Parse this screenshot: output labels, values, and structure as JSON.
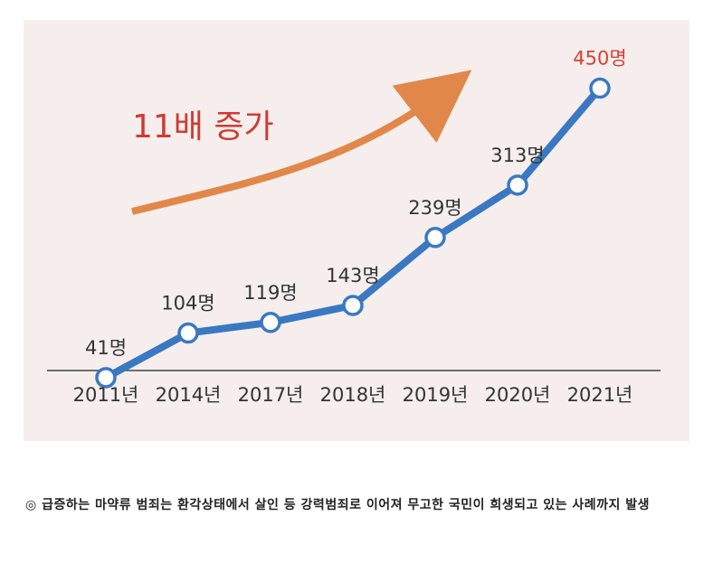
{
  "chart_data": {
    "type": "line",
    "categories": [
      "2011년",
      "2014년",
      "2017년",
      "2018년",
      "2019년",
      "2020년",
      "2021년"
    ],
    "values": [
      41,
      104,
      119,
      143,
      239,
      313,
      450
    ],
    "data_labels": [
      "41명",
      "104명",
      "119명",
      "143명",
      "239명",
      "313명",
      "450명"
    ],
    "annotation": "11배 증가",
    "ylim": [
      0,
      480
    ],
    "grid": false,
    "colors": {
      "line": "#3a78c2",
      "marker_fill": "#ffffff",
      "arrow": "#e2874a",
      "annotation": "#cf3b34",
      "highlight_label": "#d94036",
      "label": "#333333",
      "axis": "#444444",
      "background": "#f5eeec"
    }
  },
  "caption": "◎ 급증하는 마약류 범죄는 환각상태에서 살인 등 강력범죄로 이어져 무고한 국민이 희생되고 있는 사례까지 발생"
}
